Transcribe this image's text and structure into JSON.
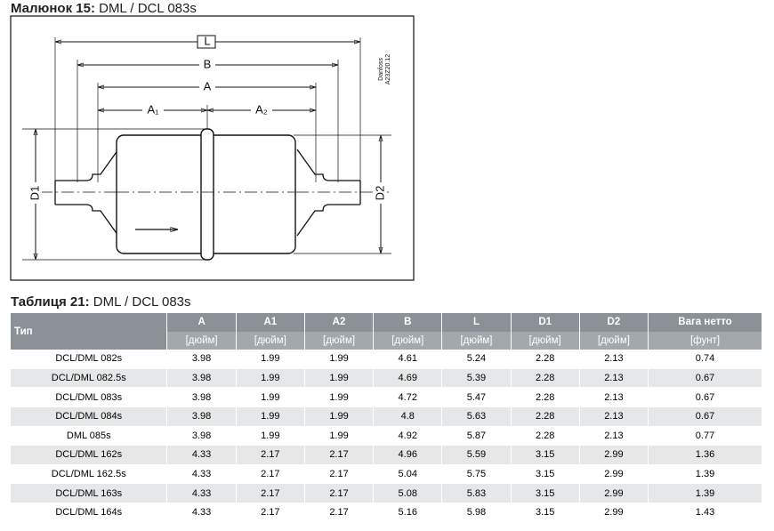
{
  "figure": {
    "caption_label": "Малюнок 15:",
    "caption_text": "DML / DCL 083s",
    "labels": {
      "L": "L",
      "B": "B",
      "A": "A",
      "A1": "A₁",
      "A2": "A₂",
      "D1": "D1",
      "D2": "D2",
      "brand": "Danfoss",
      "code": "A23Z20.12"
    }
  },
  "table": {
    "caption_label": "Таблиця 21:",
    "caption_text": "DML / DCL 083s",
    "header": [
      "Тип",
      "A",
      "A1",
      "A2",
      "B",
      "L",
      "D1",
      "D2",
      "Вага нетто"
    ],
    "units": [
      "[дюйм]",
      "[дюйм]",
      "[дюйм]",
      "[дюйм]",
      "[дюйм]",
      "[дюйм]",
      "[дюйм]",
      "[фунт]"
    ],
    "rows": [
      [
        "DCL/DML 082s",
        "3.98",
        "1.99",
        "1.99",
        "4.61",
        "5.24",
        "2.28",
        "2.13",
        "0.74"
      ],
      [
        "DCL/DML 082.5s",
        "3.98",
        "1.99",
        "1.99",
        "4.69",
        "5.39",
        "2.28",
        "2.13",
        "0.67"
      ],
      [
        "DCL/DML 083s",
        "3.98",
        "1.99",
        "1.99",
        "4.72",
        "5.47",
        "2.28",
        "2.13",
        "0.67"
      ],
      [
        "DCL/DML 084s",
        "3.98",
        "1.99",
        "1.99",
        "4.8",
        "5.63",
        "2.28",
        "2.13",
        "0.67"
      ],
      [
        "DML 085s",
        "3.98",
        "1.99",
        "1.99",
        "4.92",
        "5.87",
        "2.28",
        "2.13",
        "0.77"
      ],
      [
        "DCL/DML 162s",
        "4.33",
        "2.17",
        "2.17",
        "4.96",
        "5.59",
        "3.15",
        "2.99",
        "1.36"
      ],
      [
        "DCL/DML 162.5s",
        "4.33",
        "2.17",
        "2.17",
        "5.04",
        "5.75",
        "3.15",
        "2.99",
        "1.39"
      ],
      [
        "DCL/DML 163s",
        "4.33",
        "2.17",
        "2.17",
        "5.08",
        "5.83",
        "3.15",
        "2.99",
        "1.39"
      ],
      [
        "DCL/DML 164s",
        "4.33",
        "2.17",
        "2.17",
        "5.16",
        "5.98",
        "3.15",
        "2.99",
        "1.43"
      ]
    ]
  }
}
